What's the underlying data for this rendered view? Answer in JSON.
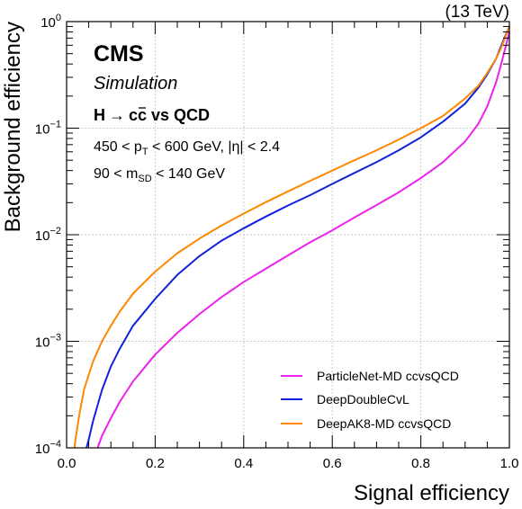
{
  "header": {
    "energy": "(13 TeV)"
  },
  "labels": {
    "experiment": "CMS",
    "status": "Simulation",
    "process": {
      "h": "H",
      "arrow": "→",
      "cc1": "c",
      "cc2": "c",
      "rest": " vs QCD"
    },
    "cut1": {
      "a": "450 < p",
      "sub": "T",
      "b": " < 600 GeV, |η| < 2.4"
    },
    "cut2": {
      "a": "90 < m",
      "sub": "SD",
      "b": " < 140 GeV"
    }
  },
  "chart_data": {
    "type": "line",
    "xlabel": "Signal efficiency",
    "ylabel": "Background efficiency",
    "xlim": [
      0,
      1
    ],
    "ylim": [
      0.0001,
      1
    ],
    "yscale": "log",
    "grid": true,
    "legend_position": "bottom-right",
    "x_ticks": [
      "0.0",
      "0.2",
      "0.4",
      "0.6",
      "0.8",
      "1.0"
    ],
    "y_ticks": [
      {
        "base": "10",
        "exp": "−4"
      },
      {
        "base": "10",
        "exp": "−3"
      },
      {
        "base": "10",
        "exp": "−2"
      },
      {
        "base": "10",
        "exp": "−1"
      },
      {
        "base": "10",
        "exp": "0"
      }
    ],
    "series": [
      {
        "name": "ParticleNet-MD ccvsQCD",
        "color": "#ee22ee",
        "x": [
          0.07,
          0.08,
          0.1,
          0.12,
          0.15,
          0.2,
          0.25,
          0.3,
          0.35,
          0.4,
          0.45,
          0.5,
          0.55,
          0.6,
          0.65,
          0.7,
          0.75,
          0.8,
          0.85,
          0.9,
          0.93,
          0.95,
          0.97,
          0.98,
          0.99,
          1.0
        ],
        "y": [
          0.0001,
          0.00013,
          0.00019,
          0.00027,
          0.00042,
          0.00075,
          0.0012,
          0.0018,
          0.0026,
          0.0036,
          0.0048,
          0.0064,
          0.0085,
          0.011,
          0.0145,
          0.019,
          0.025,
          0.034,
          0.048,
          0.075,
          0.11,
          0.16,
          0.27,
          0.38,
          0.55,
          0.8
        ]
      },
      {
        "name": "DeepDoubleCvL",
        "color": "#1122dd",
        "x": [
          0.045,
          0.05,
          0.06,
          0.08,
          0.1,
          0.12,
          0.15,
          0.2,
          0.25,
          0.3,
          0.35,
          0.4,
          0.45,
          0.5,
          0.55,
          0.6,
          0.65,
          0.7,
          0.75,
          0.8,
          0.85,
          0.9,
          0.93,
          0.95,
          0.97,
          0.98,
          0.99,
          1.0
        ],
        "y": [
          0.0001,
          0.00012,
          0.00018,
          0.00035,
          0.00058,
          0.00085,
          0.0014,
          0.0025,
          0.0042,
          0.0063,
          0.0088,
          0.0115,
          0.0148,
          0.0188,
          0.0235,
          0.03,
          0.038,
          0.048,
          0.062,
          0.082,
          0.115,
          0.17,
          0.24,
          0.32,
          0.45,
          0.57,
          0.72,
          0.9
        ]
      },
      {
        "name": "DeepAK8-MD ccvsQCD",
        "color": "#ff8800",
        "x": [
          0.018,
          0.02,
          0.03,
          0.04,
          0.06,
          0.08,
          0.1,
          0.12,
          0.15,
          0.2,
          0.25,
          0.3,
          0.35,
          0.4,
          0.45,
          0.5,
          0.55,
          0.6,
          0.65,
          0.7,
          0.75,
          0.8,
          0.85,
          0.9,
          0.93,
          0.95,
          0.97,
          0.98,
          0.99,
          1.0
        ],
        "y": [
          0.0001,
          0.00012,
          0.00022,
          0.00036,
          0.00065,
          0.001,
          0.0014,
          0.0019,
          0.0028,
          0.0045,
          0.0067,
          0.0092,
          0.0122,
          0.0158,
          0.0202,
          0.0255,
          0.032,
          0.04,
          0.05,
          0.062,
          0.078,
          0.1,
          0.13,
          0.19,
          0.25,
          0.33,
          0.45,
          0.55,
          0.7,
          0.9
        ]
      }
    ]
  }
}
